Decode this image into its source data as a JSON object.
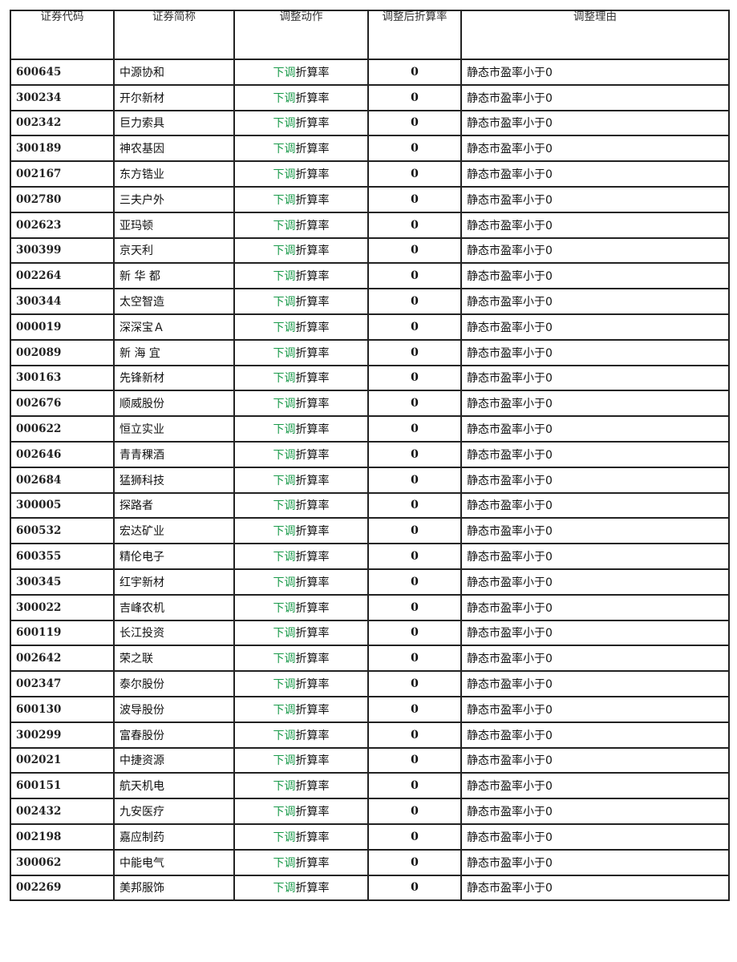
{
  "colors": {
    "action_highlight": "#1a9a4a"
  },
  "table": {
    "headers": [
      "证券代码",
      "证券简称",
      "调整动作",
      "调整后折算率",
      "调整理由"
    ],
    "action_highlight": "下调",
    "action_rest": "折算率",
    "rows": [
      {
        "code": "600645",
        "name": "中源协和",
        "rate": "0",
        "reason": "静态市盈率小于0"
      },
      {
        "code": "300234",
        "name": "开尔新材",
        "rate": "0",
        "reason": "静态市盈率小于0"
      },
      {
        "code": "002342",
        "name": "巨力索具",
        "rate": "0",
        "reason": "静态市盈率小于0"
      },
      {
        "code": "300189",
        "name": "神农基因",
        "rate": "0",
        "reason": "静态市盈率小于0"
      },
      {
        "code": "002167",
        "name": "东方锆业",
        "rate": "0",
        "reason": "静态市盈率小于0"
      },
      {
        "code": "002780",
        "name": "三夫户外",
        "rate": "0",
        "reason": "静态市盈率小于0"
      },
      {
        "code": "002623",
        "name": "亚玛顿",
        "rate": "0",
        "reason": "静态市盈率小于0"
      },
      {
        "code": "300399",
        "name": "京天利",
        "rate": "0",
        "reason": "静态市盈率小于0"
      },
      {
        "code": "002264",
        "name": "新 华 都",
        "rate": "0",
        "reason": "静态市盈率小于0"
      },
      {
        "code": "300344",
        "name": "太空智造",
        "rate": "0",
        "reason": "静态市盈率小于0"
      },
      {
        "code": "000019",
        "name": "深深宝Ａ",
        "rate": "0",
        "reason": "静态市盈率小于0"
      },
      {
        "code": "002089",
        "name": "新 海 宜",
        "rate": "0",
        "reason": "静态市盈率小于0"
      },
      {
        "code": "300163",
        "name": "先锋新材",
        "rate": "0",
        "reason": "静态市盈率小于0"
      },
      {
        "code": "002676",
        "name": "顺威股份",
        "rate": "0",
        "reason": "静态市盈率小于0"
      },
      {
        "code": "000622",
        "name": "恒立实业",
        "rate": "0",
        "reason": "静态市盈率小于0"
      },
      {
        "code": "002646",
        "name": "青青稞酒",
        "rate": "0",
        "reason": "静态市盈率小于0"
      },
      {
        "code": "002684",
        "name": "猛狮科技",
        "rate": "0",
        "reason": "静态市盈率小于0"
      },
      {
        "code": "300005",
        "name": "探路者",
        "rate": "0",
        "reason": "静态市盈率小于0"
      },
      {
        "code": "600532",
        "name": "宏达矿业",
        "rate": "0",
        "reason": "静态市盈率小于0"
      },
      {
        "code": "600355",
        "name": "精伦电子",
        "rate": "0",
        "reason": "静态市盈率小于0"
      },
      {
        "code": "300345",
        "name": "红宇新材",
        "rate": "0",
        "reason": "静态市盈率小于0"
      },
      {
        "code": "300022",
        "name": "吉峰农机",
        "rate": "0",
        "reason": "静态市盈率小于0"
      },
      {
        "code": "600119",
        "name": "长江投资",
        "rate": "0",
        "reason": "静态市盈率小于0"
      },
      {
        "code": "002642",
        "name": "荣之联",
        "rate": "0",
        "reason": "静态市盈率小于0"
      },
      {
        "code": "002347",
        "name": "泰尔股份",
        "rate": "0",
        "reason": "静态市盈率小于0"
      },
      {
        "code": "600130",
        "name": "波导股份",
        "rate": "0",
        "reason": "静态市盈率小于0"
      },
      {
        "code": "300299",
        "name": "富春股份",
        "rate": "0",
        "reason": "静态市盈率小于0"
      },
      {
        "code": "002021",
        "name": "中捷资源",
        "rate": "0",
        "reason": "静态市盈率小于0"
      },
      {
        "code": "600151",
        "name": "航天机电",
        "rate": "0",
        "reason": "静态市盈率小于0"
      },
      {
        "code": "002432",
        "name": "九安医疗",
        "rate": "0",
        "reason": "静态市盈率小于0"
      },
      {
        "code": "002198",
        "name": "嘉应制药",
        "rate": "0",
        "reason": "静态市盈率小于0"
      },
      {
        "code": "300062",
        "name": "中能电气",
        "rate": "0",
        "reason": "静态市盈率小于0"
      },
      {
        "code": "002269",
        "name": "美邦服饰",
        "rate": "0",
        "reason": "静态市盈率小于0"
      }
    ]
  }
}
